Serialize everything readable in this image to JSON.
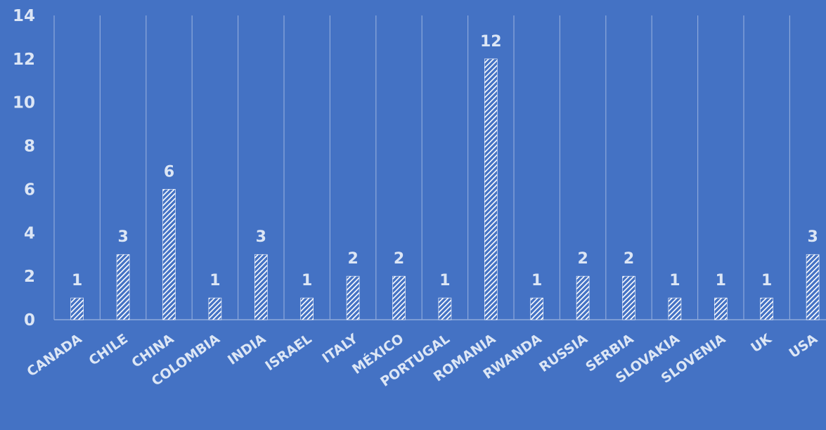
{
  "chart_data": {
    "type": "bar",
    "title": "",
    "xlabel": "",
    "ylabel": "",
    "categories": [
      "CANADA",
      "CHILE",
      "CHINA",
      "COLOMBIA",
      "INDIA",
      "ISRAEL",
      "ITALY",
      "MÉXICO",
      "PORTUGAL",
      "ROMANIA",
      "RWANDA",
      "RUSSIA",
      "SERBIA",
      "SLOVAKIA",
      "SLOVENIA",
      "UK",
      "USA"
    ],
    "values": [
      1,
      3,
      6,
      1,
      3,
      1,
      2,
      2,
      1,
      12,
      1,
      2,
      2,
      1,
      1,
      1,
      3
    ],
    "ylim": [
      0,
      14
    ],
    "yticks": [
      0,
      2,
      4,
      6,
      8,
      10,
      12,
      14
    ],
    "data_labels": true,
    "grid": "vertical",
    "legend": "none",
    "colors": {
      "background": "#4472C4",
      "bar_hatch": "#FFFFFF",
      "gridline": "#8EA9DB",
      "text": "#DCE6F5"
    }
  }
}
